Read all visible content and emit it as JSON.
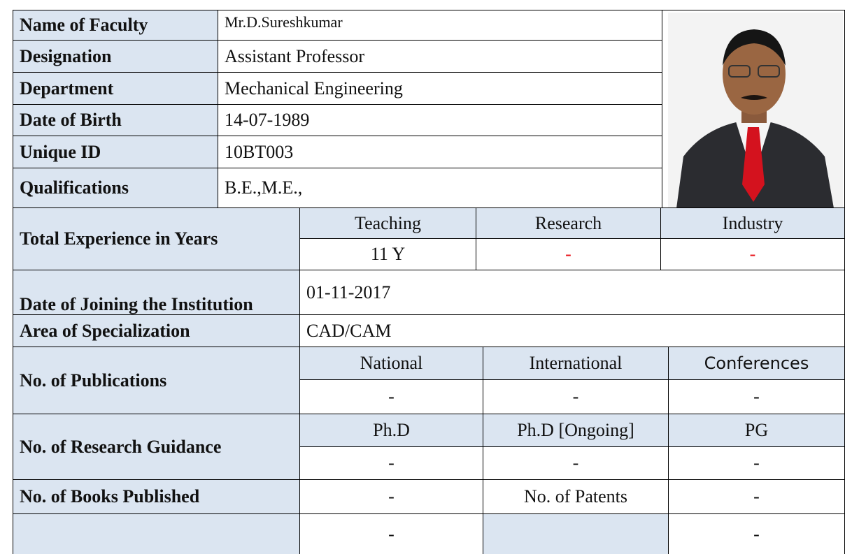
{
  "profile": {
    "rows": [
      [
        "Name of Faculty",
        "Mr.D.Sureshkumar"
      ],
      [
        "Designation",
        "Assistant Professor"
      ],
      [
        "Department",
        "Mechanical Engineering"
      ],
      [
        "Date of Birth",
        "14-07-1989"
      ],
      [
        "Unique ID",
        "10BT003"
      ],
      [
        "Qualifications",
        "B.E.,M.E.,"
      ]
    ]
  },
  "experience": {
    "label": "Total Experience in Years",
    "headers": [
      "Teaching",
      "Research",
      "Industry"
    ],
    "values": [
      "11 Y",
      "-",
      "-"
    ]
  },
  "joining": {
    "label": "Date of Joining the Institution",
    "value": "01-11-2017"
  },
  "specialization": {
    "label": "Area of Specialization",
    "value": "CAD/CAM"
  },
  "publications": {
    "label": "No. of  Publications",
    "headers": [
      "National",
      "International",
      "Conferences"
    ],
    "values": [
      "-",
      "-",
      "-"
    ]
  },
  "guidance": {
    "label": "No. of Research Guidance",
    "headers": [
      "Ph.D",
      "Ph.D [Ongoing]",
      "PG"
    ],
    "values": [
      "-",
      "-",
      "-"
    ]
  },
  "books": {
    "label": "No. of Books Published",
    "value": "-",
    "patents_label": "No. of Patents",
    "patents_value": "-"
  },
  "last_row": {
    "values": [
      "-",
      "-"
    ]
  }
}
